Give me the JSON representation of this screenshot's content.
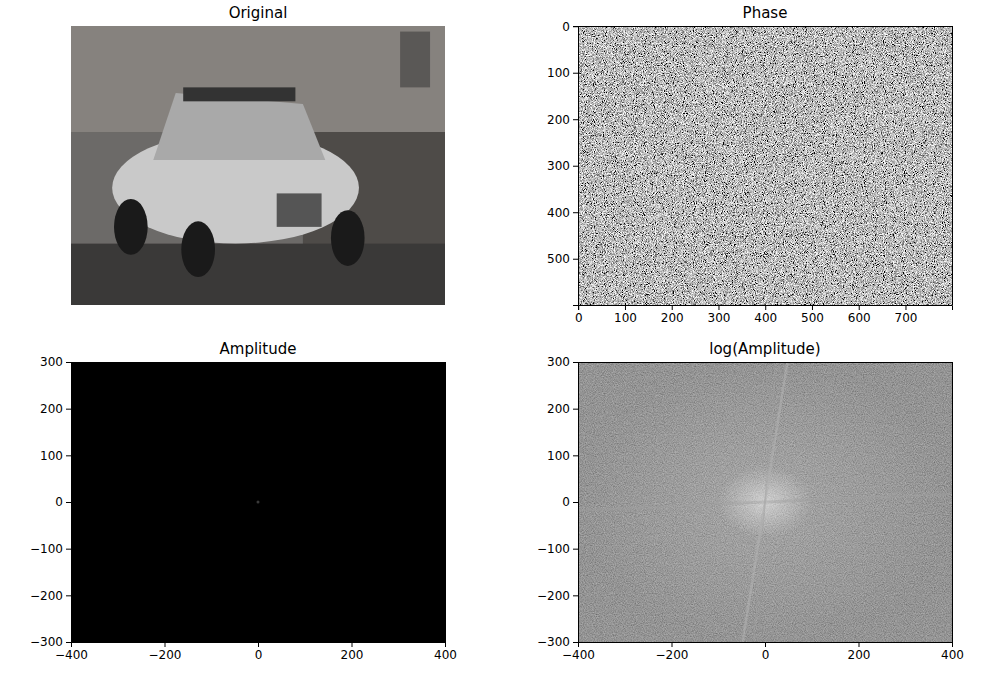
{
  "chart_data": [
    {
      "type": "image",
      "title": "Original",
      "tick_labels": false
    },
    {
      "type": "image",
      "title": "Phase",
      "xlim": [
        -0.5,
        799.5
      ],
      "ylim": [
        599.5,
        -0.5
      ],
      "xticks": [
        0,
        100,
        200,
        300,
        400,
        500,
        600,
        700
      ],
      "yticks": [
        0,
        100,
        200,
        300,
        400,
        500
      ]
    },
    {
      "type": "image",
      "title": "Amplitude",
      "xlim": [
        -400,
        400
      ],
      "ylim": [
        -300,
        300
      ],
      "xticks": [
        {
          "value": -400,
          "label": "−400"
        },
        {
          "value": -200,
          "label": "−200"
        },
        0,
        200,
        400
      ],
      "yticks": [
        {
          "value": -300,
          "label": "−300"
        },
        {
          "value": -200,
          "label": "−200"
        },
        {
          "value": -100,
          "label": "−100"
        },
        0,
        100,
        200,
        300
      ]
    },
    {
      "type": "image",
      "title": "log(Amplitude)",
      "xlim": [
        -400,
        400
      ],
      "ylim": [
        -300,
        300
      ],
      "xticks": [
        {
          "value": -400,
          "label": "−400"
        },
        {
          "value": -200,
          "label": "−200"
        },
        0,
        200,
        400
      ],
      "yticks": [
        {
          "value": -300,
          "label": "−300"
        },
        {
          "value": -200,
          "label": "−200"
        },
        {
          "value": -100,
          "label": "−100"
        },
        0,
        100,
        200,
        300
      ]
    }
  ]
}
